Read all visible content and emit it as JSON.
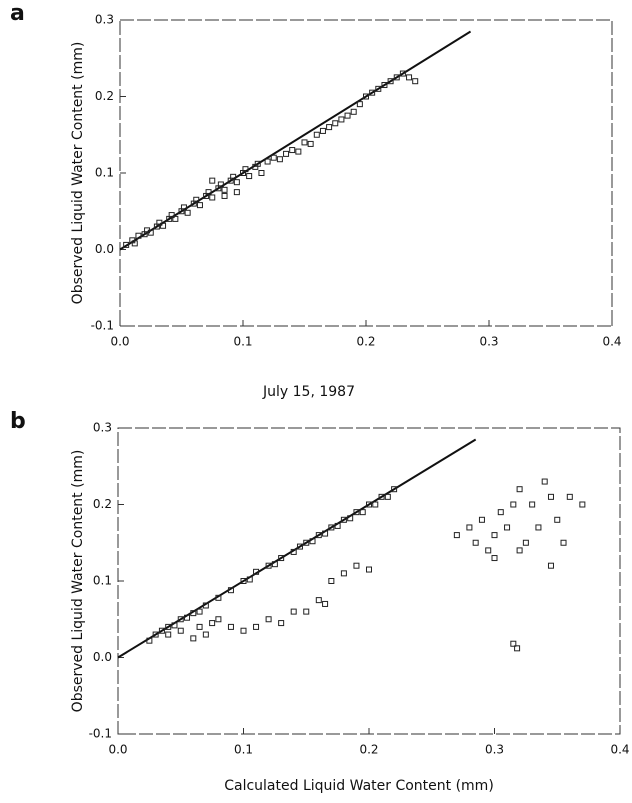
{
  "chart_data": [
    {
      "type": "scatter",
      "panel_label": "a",
      "ylabel": "Observed Liquid Water Content (mm)",
      "marker": "square",
      "color": "#222222",
      "xlim": [
        0,
        0.4
      ],
      "ylim": [
        -0.1,
        0.3
      ],
      "xticks": [
        {
          "value": 0,
          "label": "0.0"
        },
        0.1,
        0.2,
        0.3,
        0.4
      ],
      "yticks": [
        -0.1,
        {
          "value": 0,
          "label": "0.0"
        },
        0.1,
        0.2,
        0.3
      ],
      "x": [
        0.005,
        0.01,
        0.012,
        0.015,
        0.02,
        0.022,
        0.025,
        0.03,
        0.032,
        0.035,
        0.04,
        0.042,
        0.045,
        0.05,
        0.052,
        0.055,
        0.06,
        0.062,
        0.065,
        0.07,
        0.072,
        0.075,
        0.08,
        0.082,
        0.085,
        0.09,
        0.092,
        0.095,
        0.1,
        0.102,
        0.105,
        0.11,
        0.112,
        0.115,
        0.12,
        0.125,
        0.13,
        0.135,
        0.14,
        0.145,
        0.15,
        0.155,
        0.16,
        0.165,
        0.17,
        0.175,
        0.18,
        0.185,
        0.19,
        0.195,
        0.2,
        0.205,
        0.21,
        0.215,
        0.22,
        0.225,
        0.23,
        0.235,
        0.24,
        0.075,
        0.085,
        0.095
      ],
      "values": [
        0.006,
        0.012,
        0.008,
        0.018,
        0.02,
        0.025,
        0.022,
        0.03,
        0.035,
        0.031,
        0.04,
        0.045,
        0.04,
        0.05,
        0.055,
        0.048,
        0.06,
        0.065,
        0.058,
        0.07,
        0.075,
        0.068,
        0.08,
        0.085,
        0.078,
        0.09,
        0.095,
        0.088,
        0.1,
        0.105,
        0.096,
        0.108,
        0.112,
        0.1,
        0.115,
        0.12,
        0.118,
        0.125,
        0.13,
        0.128,
        0.14,
        0.138,
        0.15,
        0.155,
        0.16,
        0.165,
        0.17,
        0.175,
        0.18,
        0.19,
        0.2,
        0.205,
        0.21,
        0.215,
        0.22,
        0.225,
        0.23,
        0.225,
        0.22,
        0.09,
        0.07,
        0.075
      ],
      "reference_line": {
        "x": [
          0,
          0.285
        ],
        "values": [
          0,
          0.285
        ]
      }
    },
    {
      "type": "scatter",
      "panel_label": "b",
      "title": "July 15, 1987",
      "ylabel": "Observed Liquid Water Content (mm)",
      "xlabel": "Calculated Liquid Water Content (mm)",
      "marker": "square",
      "color": "#222222",
      "xlim": [
        0,
        0.4
      ],
      "ylim": [
        -0.1,
        0.3
      ],
      "xticks": [
        {
          "value": 0,
          "label": "0.0"
        },
        0.1,
        0.2,
        0.3,
        0.4
      ],
      "yticks": [
        -0.1,
        {
          "value": 0,
          "label": "0.0"
        },
        0.1,
        0.2,
        0.3
      ],
      "x": [
        0.025,
        0.03,
        0.035,
        0.04,
        0.045,
        0.05,
        0.055,
        0.06,
        0.065,
        0.07,
        0.08,
        0.09,
        0.1,
        0.105,
        0.11,
        0.12,
        0.125,
        0.13,
        0.14,
        0.145,
        0.15,
        0.155,
        0.16,
        0.165,
        0.17,
        0.175,
        0.18,
        0.185,
        0.19,
        0.195,
        0.2,
        0.205,
        0.21,
        0.215,
        0.22,
        0.04,
        0.05,
        0.06,
        0.065,
        0.07,
        0.075,
        0.08,
        0.09,
        0.1,
        0.11,
        0.12,
        0.13,
        0.14,
        0.15,
        0.16,
        0.165,
        0.17,
        0.18,
        0.19,
        0.2,
        0.27,
        0.28,
        0.285,
        0.29,
        0.295,
        0.3,
        0.305,
        0.31,
        0.315,
        0.32,
        0.325,
        0.33,
        0.335,
        0.34,
        0.345,
        0.35,
        0.355,
        0.36,
        0.37,
        0.3,
        0.32,
        0.345,
        0.315,
        0.318
      ],
      "values": [
        0.022,
        0.03,
        0.035,
        0.04,
        0.042,
        0.05,
        0.052,
        0.058,
        0.06,
        0.068,
        0.078,
        0.088,
        0.1,
        0.102,
        0.112,
        0.12,
        0.122,
        0.13,
        0.138,
        0.145,
        0.15,
        0.152,
        0.16,
        0.162,
        0.17,
        0.172,
        0.18,
        0.182,
        0.19,
        0.19,
        0.2,
        0.2,
        0.21,
        0.21,
        0.22,
        0.03,
        0.035,
        0.025,
        0.04,
        0.03,
        0.045,
        0.05,
        0.04,
        0.035,
        0.04,
        0.05,
        0.045,
        0.06,
        0.06,
        0.075,
        0.07,
        0.1,
        0.11,
        0.12,
        0.115,
        0.16,
        0.17,
        0.15,
        0.18,
        0.14,
        0.16,
        0.19,
        0.17,
        0.2,
        0.22,
        0.15,
        0.2,
        0.17,
        0.23,
        0.21,
        0.18,
        0.15,
        0.21,
        0.2,
        0.13,
        0.14,
        0.12,
        0.018,
        0.012
      ],
      "reference_line": {
        "x": [
          0,
          0.285
        ],
        "values": [
          0,
          0.285
        ]
      }
    }
  ]
}
